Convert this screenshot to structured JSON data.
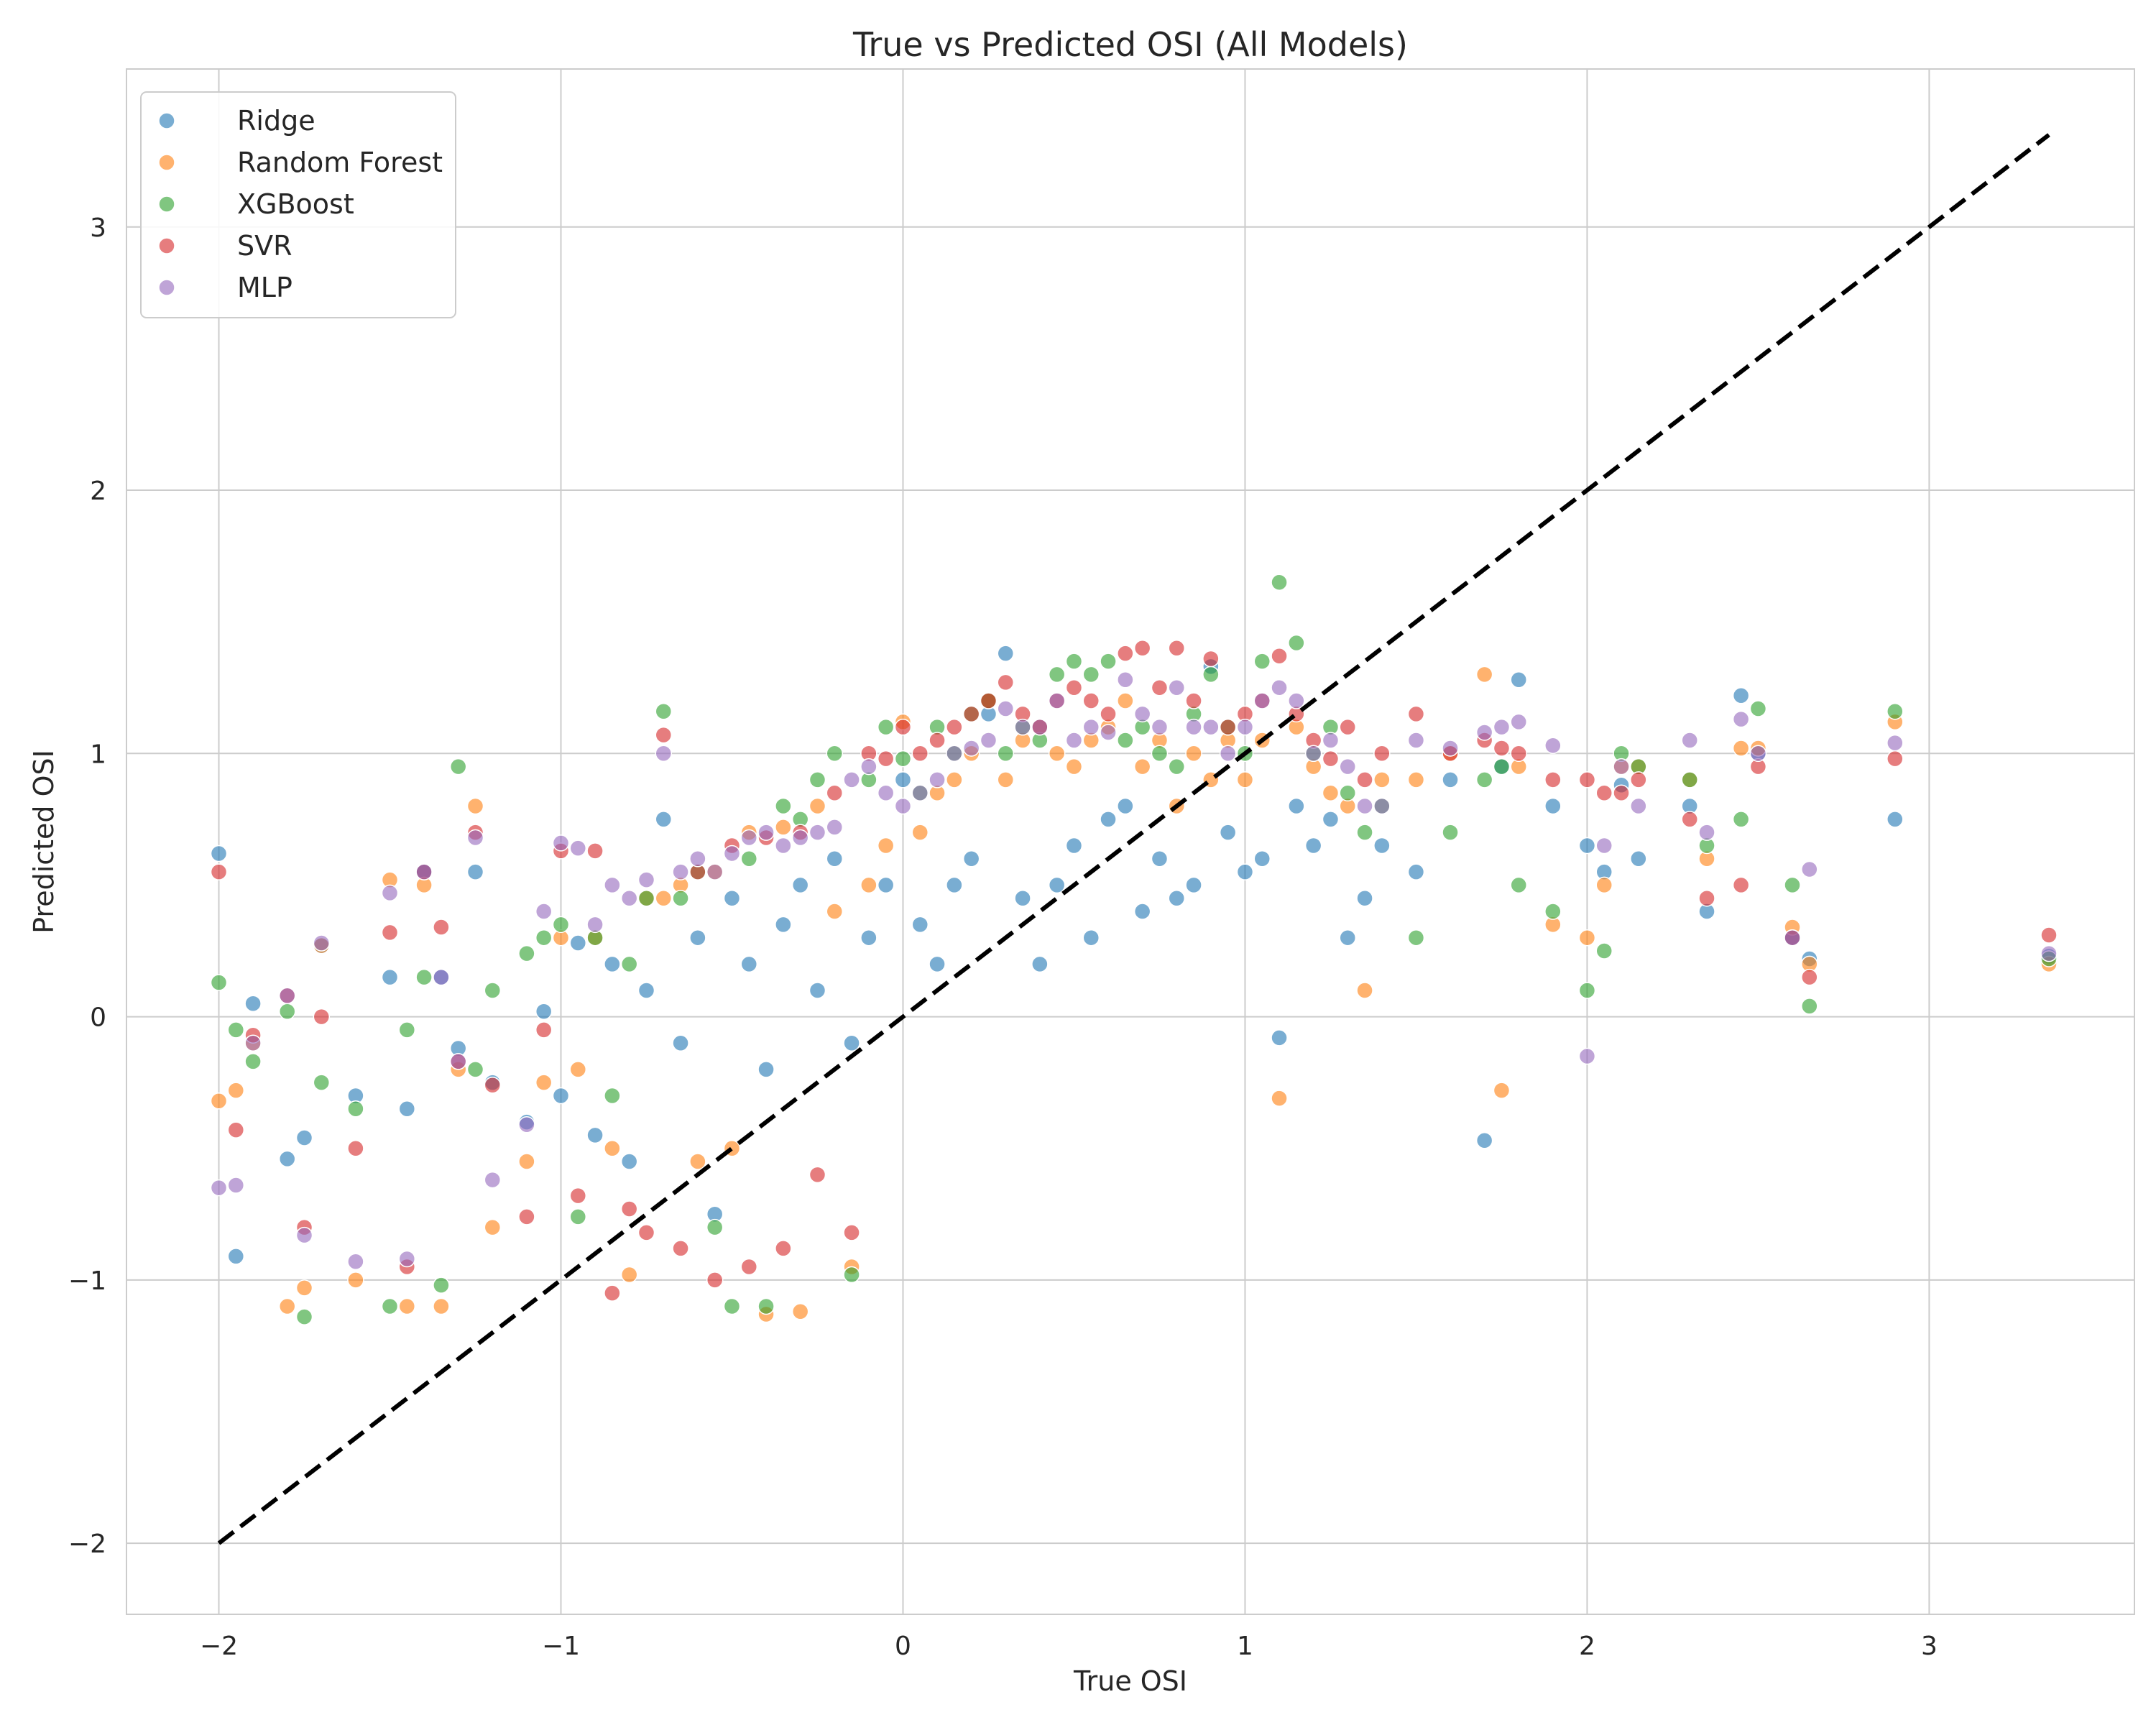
{
  "chart_data": {
    "type": "scatter",
    "title": "True vs Predicted OSI (All Models)",
    "xlabel": "True OSI",
    "ylabel": "Predicted OSI",
    "xlim": [
      -2.27,
      3.6
    ],
    "ylim": [
      -2.27,
      3.6
    ],
    "xticks": [
      -2,
      -1,
      0,
      1,
      2,
      3
    ],
    "yticks": [
      -2,
      -1,
      0,
      1,
      2,
      3
    ],
    "xtick_labels": [
      "−2",
      "−1",
      "0",
      "1",
      "2",
      "3"
    ],
    "ytick_labels": [
      "−2",
      "−1",
      "0",
      "1",
      "2",
      "3"
    ],
    "grid": true,
    "legend_position": "top-left",
    "reference_line": {
      "style": "dashed",
      "color": "#000000",
      "from": [
        -2.0,
        -2.0
      ],
      "to": [
        3.35,
        3.35
      ]
    },
    "x": [
      -2.0,
      -1.95,
      -1.9,
      -1.8,
      -1.75,
      -1.7,
      -1.6,
      -1.5,
      -1.45,
      -1.4,
      -1.35,
      -1.3,
      -1.25,
      -1.2,
      -1.1,
      -1.05,
      -1.0,
      -0.95,
      -0.9,
      -0.85,
      -0.8,
      -0.75,
      -0.7,
      -0.65,
      -0.6,
      -0.55,
      -0.5,
      -0.45,
      -0.4,
      -0.35,
      -0.3,
      -0.25,
      -0.2,
      -0.15,
      -0.1,
      -0.05,
      0.0,
      0.05,
      0.1,
      0.15,
      0.2,
      0.25,
      0.3,
      0.35,
      0.4,
      0.45,
      0.5,
      0.55,
      0.6,
      0.65,
      0.7,
      0.75,
      0.8,
      0.85,
      0.9,
      0.95,
      1.0,
      1.05,
      1.1,
      1.15,
      1.2,
      1.25,
      1.3,
      1.35,
      1.4,
      1.5,
      1.6,
      1.7,
      1.75,
      1.8,
      1.9,
      2.0,
      2.05,
      2.1,
      2.15,
      2.3,
      2.35,
      2.45,
      2.5,
      2.6,
      2.65,
      2.9,
      3.35
    ],
    "series": [
      {
        "name": "Ridge",
        "color": "#1f77b4",
        "values": [
          0.62,
          -0.91,
          0.05,
          -0.54,
          -0.46,
          0.27,
          -0.3,
          0.15,
          -0.35,
          0.55,
          0.15,
          -0.12,
          0.55,
          -0.25,
          -0.4,
          0.02,
          -0.3,
          0.28,
          -0.45,
          0.2,
          -0.55,
          0.1,
          0.75,
          -0.1,
          0.3,
          -0.75,
          0.45,
          0.2,
          -0.2,
          0.35,
          0.5,
          0.1,
          0.6,
          -0.1,
          0.3,
          0.5,
          0.9,
          0.35,
          0.2,
          0.5,
          0.6,
          1.15,
          1.38,
          0.45,
          0.2,
          0.5,
          0.65,
          0.3,
          0.75,
          0.8,
          0.4,
          0.6,
          0.45,
          0.5,
          1.33,
          0.7,
          0.55,
          0.6,
          -0.08,
          0.8,
          0.65,
          0.75,
          0.3,
          0.45,
          0.65,
          0.55,
          0.9,
          -0.47,
          0.95,
          1.28,
          0.8,
          0.65,
          0.55,
          0.88,
          0.6,
          0.8,
          0.4,
          1.22,
          1.0,
          0.3,
          0.22,
          0.75,
          0.23
        ]
      },
      {
        "name": "Random Forest",
        "color": "#ff7f0e",
        "values": [
          -0.32,
          -0.28,
          -0.1,
          -1.1,
          -1.03,
          0.27,
          -1.0,
          0.52,
          -1.1,
          0.5,
          -1.1,
          -0.2,
          0.8,
          -0.8,
          -0.55,
          -0.25,
          0.3,
          -0.2,
          0.3,
          -0.5,
          -0.98,
          0.45,
          0.45,
          0.5,
          -0.55,
          0.55,
          -0.5,
          0.7,
          -1.13,
          0.72,
          -1.12,
          0.8,
          0.4,
          -0.95,
          0.5,
          0.65,
          1.12,
          0.7,
          0.85,
          0.9,
          1.0,
          1.2,
          0.9,
          1.05,
          1.1,
          1.0,
          0.95,
          1.05,
          1.1,
          1.2,
          0.95,
          1.05,
          0.8,
          1.0,
          0.9,
          1.05,
          0.9,
          1.05,
          -0.31,
          1.1,
          0.95,
          0.85,
          0.8,
          0.1,
          0.9,
          0.9,
          1.0,
          1.3,
          -0.28,
          0.95,
          0.35,
          0.3,
          0.5,
          0.95,
          0.95,
          0.9,
          0.6,
          1.02,
          1.02,
          0.34,
          0.2,
          1.12,
          0.2
        ]
      },
      {
        "name": "XGBoost",
        "color": "#2ca02c",
        "values": [
          0.13,
          -0.05,
          -0.17,
          0.02,
          -1.14,
          -0.25,
          -0.35,
          -1.1,
          -0.05,
          0.15,
          -1.02,
          0.95,
          -0.2,
          0.1,
          0.24,
          0.3,
          0.35,
          -0.76,
          0.3,
          -0.3,
          0.2,
          0.45,
          1.16,
          0.45,
          0.55,
          -0.8,
          -1.1,
          0.6,
          -1.1,
          0.8,
          0.75,
          0.9,
          1.0,
          -0.98,
          0.9,
          1.1,
          0.98,
          0.85,
          1.1,
          1.0,
          1.15,
          1.2,
          1.0,
          1.1,
          1.05,
          1.3,
          1.35,
          1.3,
          1.35,
          1.05,
          1.1,
          1.0,
          0.95,
          1.15,
          1.3,
          1.1,
          1.0,
          1.35,
          1.65,
          1.42,
          1.0,
          1.1,
          0.85,
          0.7,
          0.8,
          0.3,
          0.7,
          0.9,
          0.95,
          0.5,
          0.4,
          0.1,
          0.25,
          1.0,
          0.95,
          0.9,
          0.65,
          0.75,
          1.17,
          0.5,
          0.04,
          1.16,
          0.22
        ]
      },
      {
        "name": "SVR",
        "color": "#d62728",
        "values": [
          0.55,
          -0.43,
          -0.07,
          0.08,
          -0.8,
          0.0,
          -0.5,
          0.32,
          -0.95,
          0.55,
          0.34,
          -0.17,
          0.7,
          -0.26,
          -0.76,
          -0.05,
          0.63,
          -0.68,
          0.63,
          -1.05,
          -0.73,
          -0.82,
          1.07,
          -0.88,
          0.55,
          -1.0,
          0.65,
          -0.95,
          0.68,
          -0.88,
          0.7,
          -0.6,
          0.85,
          -0.82,
          1.0,
          0.98,
          1.1,
          1.0,
          1.05,
          1.1,
          1.15,
          1.2,
          1.27,
          1.15,
          1.1,
          1.2,
          1.25,
          1.2,
          1.15,
          1.38,
          1.4,
          1.25,
          1.4,
          1.2,
          1.36,
          1.1,
          1.15,
          1.2,
          1.37,
          1.15,
          1.05,
          0.98,
          1.1,
          0.9,
          1.0,
          1.15,
          1.0,
          1.05,
          1.02,
          1.0,
          0.9,
          0.9,
          0.85,
          0.85,
          0.9,
          0.75,
          0.45,
          0.5,
          0.95,
          0.3,
          0.15,
          0.98,
          0.31
        ]
      },
      {
        "name": "MLP",
        "color": "#9467bd",
        "values": [
          -0.65,
          -0.64,
          -0.1,
          0.08,
          -0.83,
          0.28,
          -0.93,
          0.47,
          -0.92,
          0.55,
          0.15,
          -0.17,
          0.68,
          -0.62,
          -0.41,
          0.4,
          0.66,
          0.64,
          0.35,
          0.5,
          0.45,
          0.52,
          1.0,
          0.55,
          0.6,
          0.55,
          0.62,
          0.68,
          0.7,
          0.65,
          0.68,
          0.7,
          0.72,
          0.9,
          0.95,
          0.85,
          0.8,
          0.85,
          0.9,
          1.0,
          1.02,
          1.05,
          1.17,
          1.1,
          1.1,
          1.2,
          1.05,
          1.1,
          1.08,
          1.28,
          1.15,
          1.1,
          1.25,
          1.1,
          1.1,
          1.0,
          1.1,
          1.2,
          1.25,
          1.2,
          1.0,
          1.05,
          0.95,
          0.8,
          0.8,
          1.05,
          1.02,
          1.08,
          1.1,
          1.12,
          1.03,
          -0.15,
          0.65,
          0.95,
          0.8,
          1.05,
          0.7,
          1.13,
          1.0,
          0.3,
          0.56,
          1.04,
          0.24
        ]
      }
    ],
    "points_per_series_note": ""
  }
}
